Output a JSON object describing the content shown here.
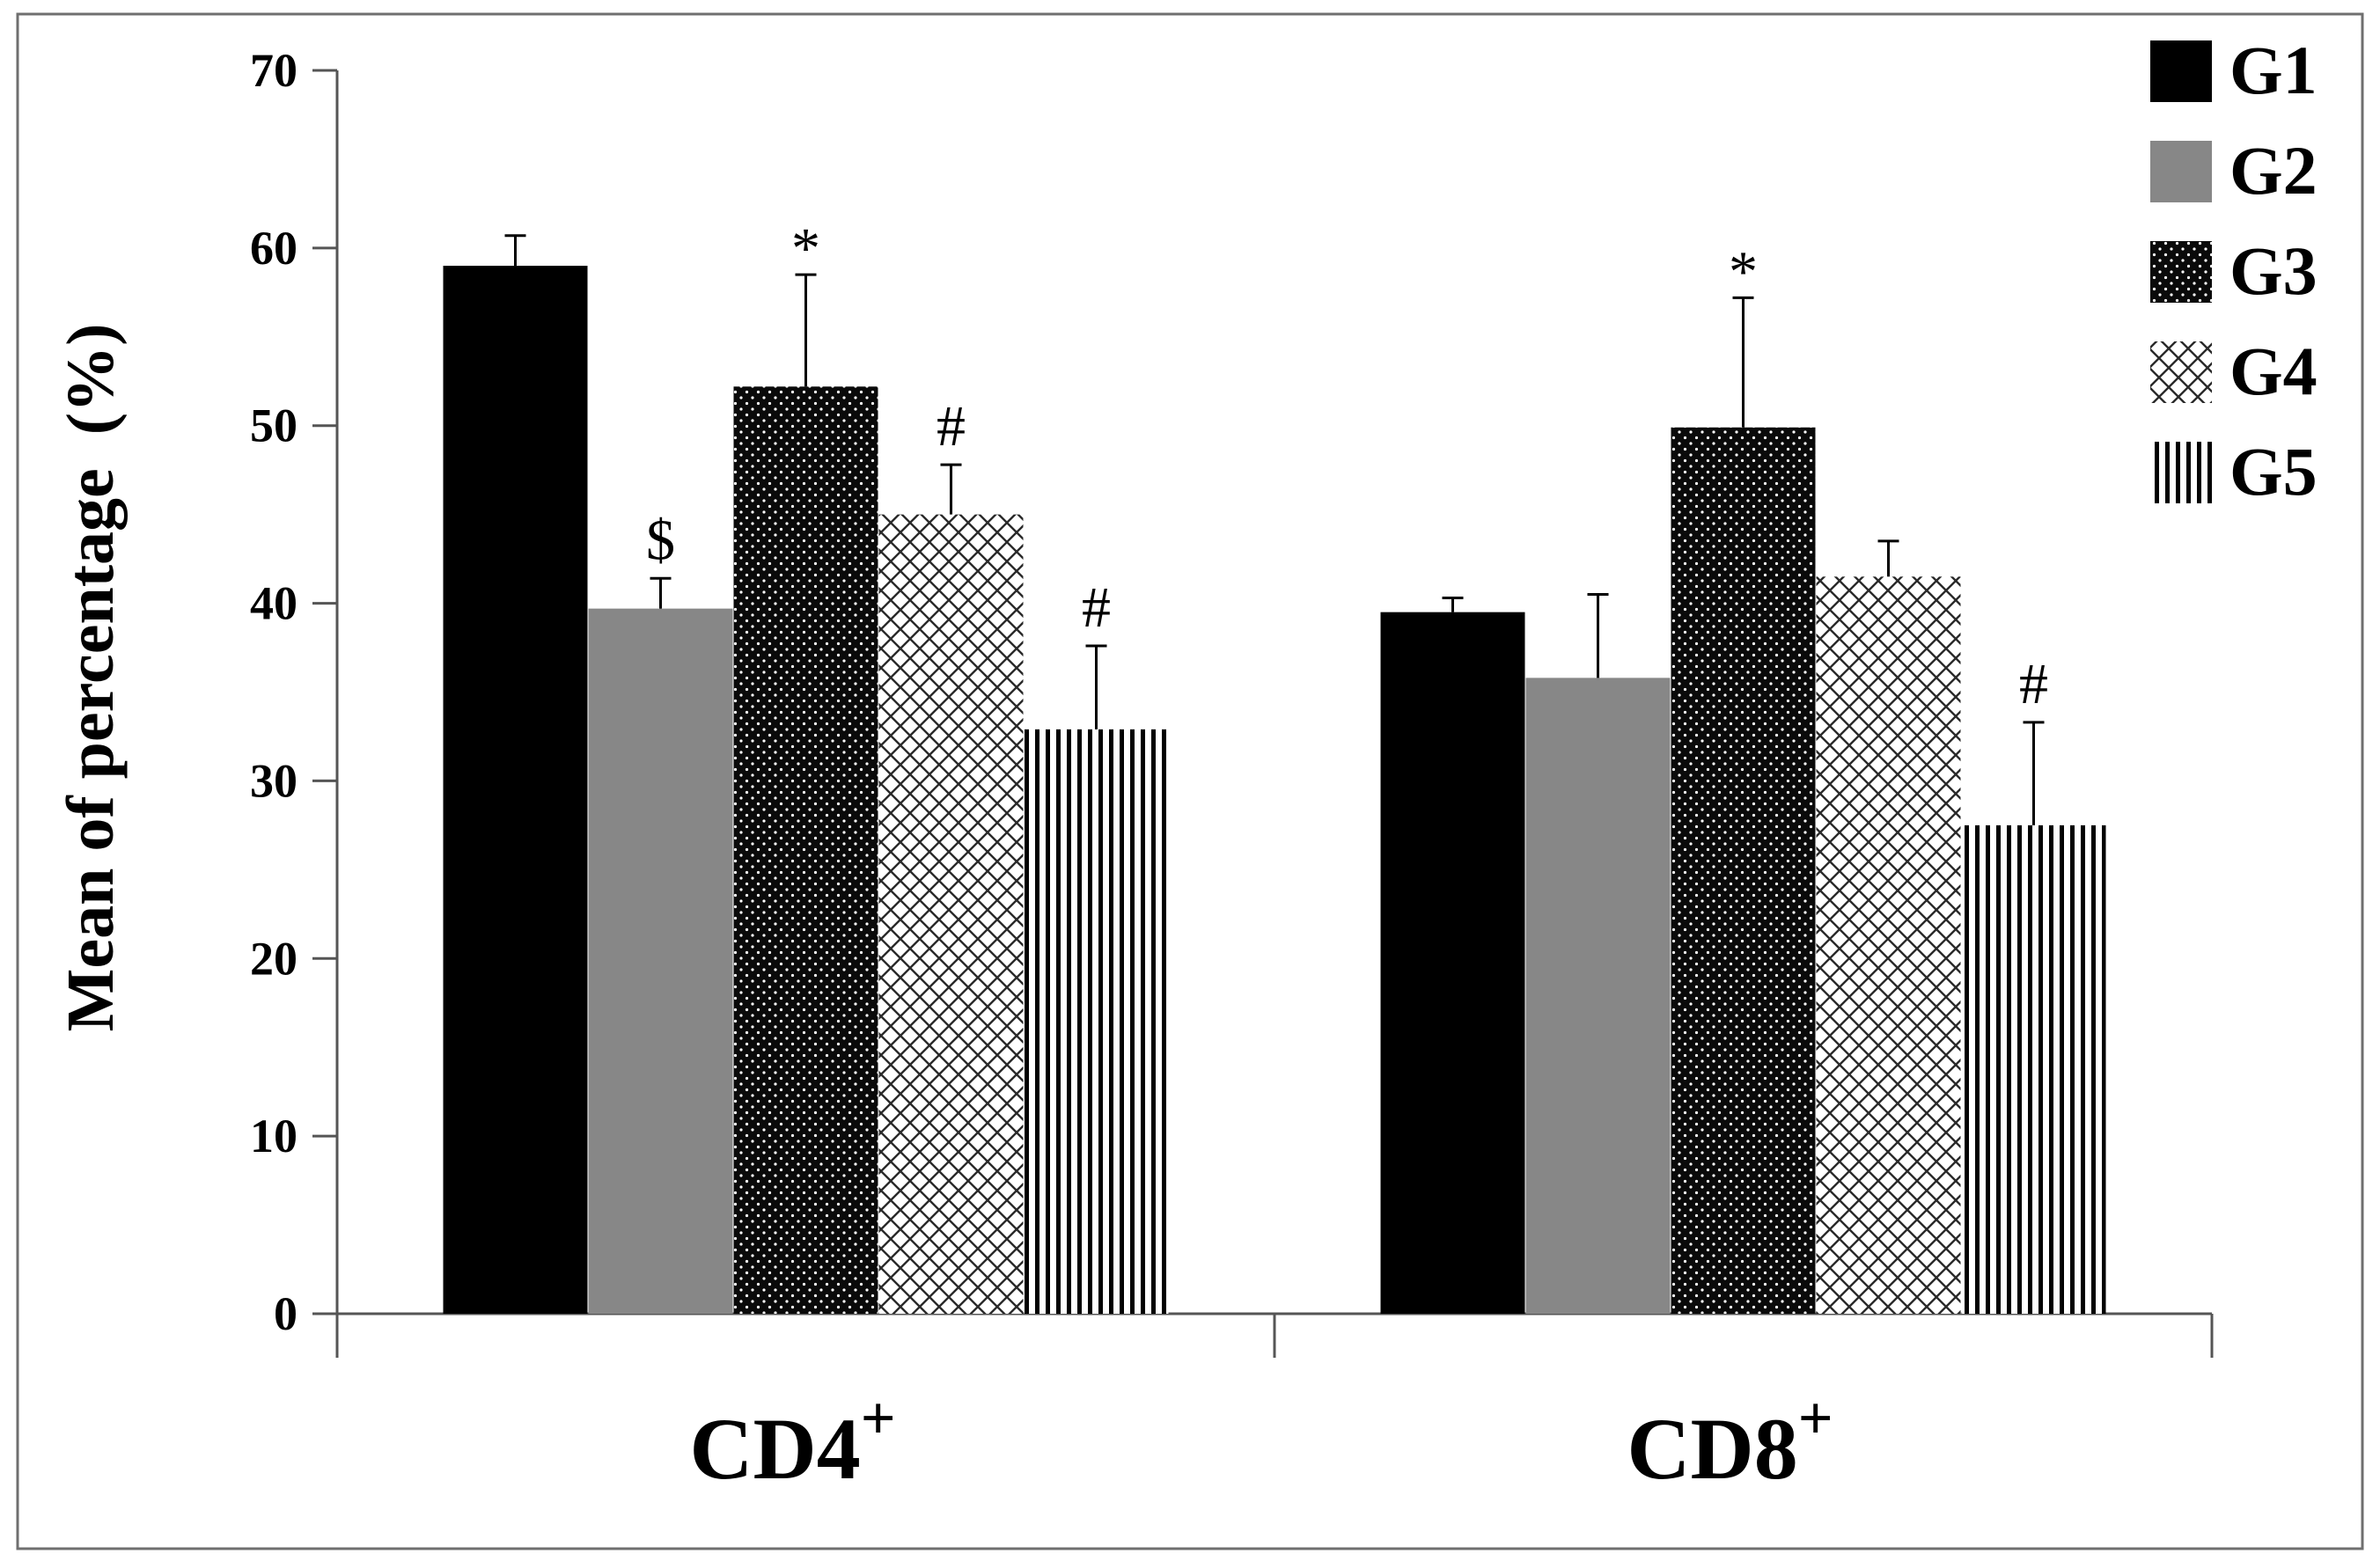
{
  "chart_data": {
    "type": "bar",
    "title": "",
    "xlabel": "",
    "ylabel": "Mean of percentage  (%)",
    "ylim": [
      0,
      70
    ],
    "yticks": [
      0,
      10,
      20,
      30,
      40,
      50,
      60,
      70
    ],
    "grid": false,
    "legend_position": "top-right",
    "categories": [
      {
        "name": "CD4",
        "superscript": "+"
      },
      {
        "name": "CD8",
        "superscript": "+"
      }
    ],
    "series": [
      {
        "name": "G1",
        "pattern": "solid-black",
        "values": [
          59,
          39.5
        ],
        "errors": [
          1.7,
          0.8
        ],
        "annotations": [
          "",
          ""
        ]
      },
      {
        "name": "G2",
        "pattern": "solid-gray",
        "values": [
          39.7,
          35.8
        ],
        "errors": [
          1.7,
          4.7
        ],
        "annotations": [
          "$",
          ""
        ]
      },
      {
        "name": "G3",
        "pattern": "dots-on-black",
        "values": [
          52.2,
          49.9
        ],
        "errors": [
          6.3,
          7.3
        ],
        "annotations": [
          "*",
          "*"
        ]
      },
      {
        "name": "G4",
        "pattern": "crosshatch",
        "values": [
          45,
          41.5
        ],
        "errors": [
          2.8,
          2
        ],
        "annotations": [
          "#",
          ""
        ]
      },
      {
        "name": "G5",
        "pattern": "vertical-lines",
        "values": [
          32.9,
          27.5
        ],
        "errors": [
          4.7,
          5.8
        ],
        "annotations": [
          "#",
          "#"
        ]
      }
    ],
    "colors": {
      "G1": "#000000",
      "G2": "#878787",
      "G3": "#0a0a0a",
      "G4": "#ffffff",
      "G5": "#ffffff",
      "pattern_ink": "#2a2a2a",
      "axis": "#555555",
      "frame": "#6f6f6f"
    }
  }
}
